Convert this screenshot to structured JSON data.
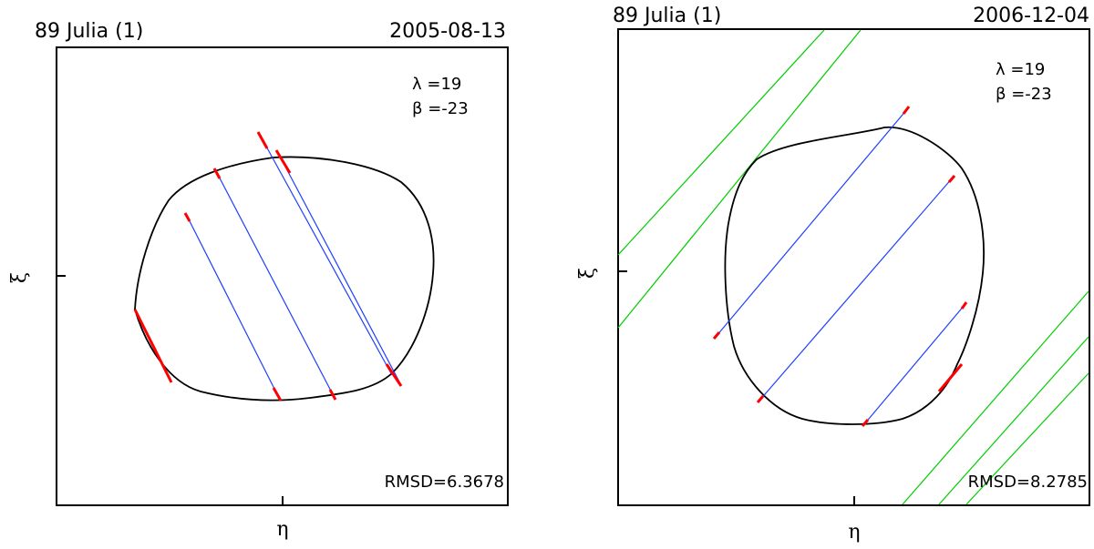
{
  "panels": [
    {
      "title": "89 Julia  (1)",
      "date": "2005-08-13",
      "lambda": "λ =19",
      "beta": "β =-23",
      "rmsd": "RMSD=6.3678",
      "x_label": "η",
      "y_label": "ξ"
    },
    {
      "title": "89 Julia  (1)",
      "date": "2006-12-04",
      "lambda": "λ =19",
      "beta": "β =-23",
      "rmsd": "RMSD=8.2785",
      "x_label": "η",
      "y_label": "ξ"
    }
  ]
}
